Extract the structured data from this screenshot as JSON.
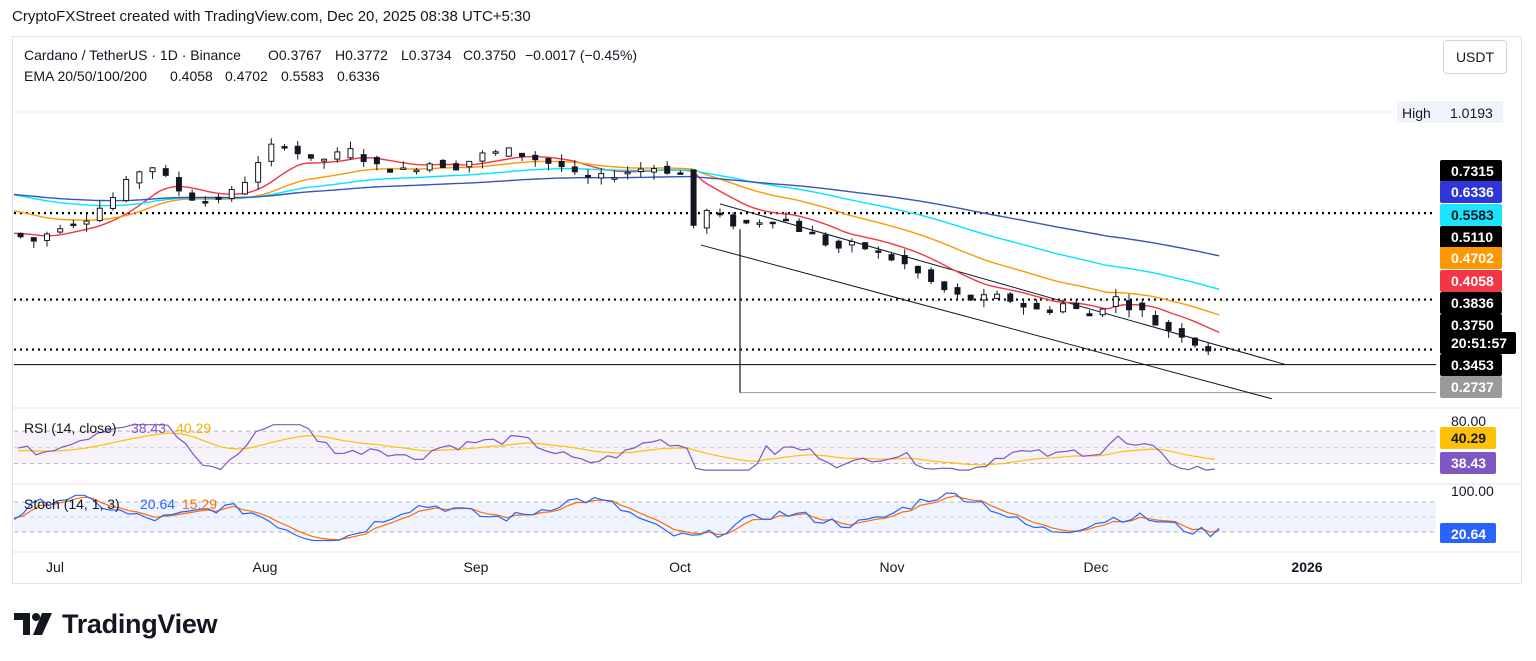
{
  "caption": "CryptoFXStreet created with TradingView.com, Dec 20, 2025 08:38 UTC+5:30",
  "header": {
    "symbol": "Cardano / TetherUS · 1D · Binance",
    "open": "O0.3767",
    "high": "H0.3772",
    "low": "L0.3734",
    "close": "C0.3750",
    "change": "−0.0017 (−0.45%)"
  },
  "ema": {
    "label": "EMA 20/50/100/200",
    "v20": "0.4058",
    "v50": "0.4702",
    "v100": "0.5583",
    "v200": "0.6336",
    "colors": {
      "ema20": "#f23645",
      "ema50": "#ff9800",
      "ema100": "#00e5ff",
      "ema200": "#3f51b5"
    }
  },
  "currency_button": "USDT",
  "high_marker": {
    "label": "High",
    "value": "1.0193"
  },
  "price_tags": [
    {
      "text": "0.7315",
      "bg": "#000000",
      "fg": "#ffffff"
    },
    {
      "text": "0.6336",
      "bg": "#2f35d8",
      "fg": "#ffffff"
    },
    {
      "text": "0.5583",
      "bg": "#1be4ff",
      "fg": "#131722"
    },
    {
      "text": "0.5110",
      "bg": "#000000",
      "fg": "#ffffff"
    },
    {
      "text": "0.4702",
      "bg": "#ff9800",
      "fg": "#ffffff"
    },
    {
      "text": "0.4058",
      "bg": "#f23645",
      "fg": "#ffffff"
    },
    {
      "text": "0.3836",
      "bg": "#000000",
      "fg": "#ffffff"
    },
    {
      "text": "0.3750",
      "bg": "#000000",
      "fg": "#ffffff"
    },
    {
      "text": "20:51:57",
      "bg": "#000000",
      "fg": "#ffffff"
    },
    {
      "text": "0.3453",
      "bg": "#000000",
      "fg": "#ffffff"
    },
    {
      "text": "0.2737",
      "bg": "#9a9a9a",
      "fg": "#ffffff"
    }
  ],
  "rsi": {
    "label": "RSI (14, close)",
    "value": "38.43",
    "ma_value": "40.29",
    "level_high": "80.00",
    "colors": {
      "rsi": "#7e57c2",
      "ma": "#ffc107"
    }
  },
  "stoch": {
    "label": "Stoch (14, 1, 3)",
    "k": "20.64",
    "d": "15.29",
    "level_high": "100.00",
    "colors": {
      "k": "#2962ff",
      "d": "#ff6d00"
    }
  },
  "time_axis": [
    "Jul",
    "Aug",
    "Sep",
    "Oct",
    "Nov",
    "Dec",
    "2026"
  ],
  "brand": "TradingView",
  "chart_data": {
    "type": "candlestick",
    "title": "Cardano / TetherUS · 1D · Binance",
    "x_range": [
      "2025-06-25",
      "2026-01-31"
    ],
    "y_range": [
      0.255,
      1.03
    ],
    "horizontal_levels": [
      0.7315,
      0.511,
      0.3836,
      0.3453,
      0.2737
    ],
    "current_price": 0.375,
    "period_high": 1.0193,
    "price_path": [
      [
        0,
        0.68
      ],
      [
        6,
        0.66
      ],
      [
        12,
        0.7
      ],
      [
        18,
        0.72
      ],
      [
        24,
        0.77
      ],
      [
        28,
        0.82
      ],
      [
        32,
        0.86
      ],
      [
        36,
        0.82
      ],
      [
        40,
        0.78
      ],
      [
        44,
        0.76
      ],
      [
        48,
        0.77
      ],
      [
        52,
        0.79
      ],
      [
        56,
        0.84
      ],
      [
        60,
        0.9
      ],
      [
        64,
        0.91
      ],
      [
        68,
        0.86
      ],
      [
        72,
        0.87
      ],
      [
        78,
        0.89
      ],
      [
        84,
        0.85
      ],
      [
        90,
        0.84
      ],
      [
        96,
        0.86
      ],
      [
        102,
        0.85
      ],
      [
        108,
        0.88
      ],
      [
        114,
        0.89
      ],
      [
        120,
        0.87
      ],
      [
        126,
        0.85
      ],
      [
        130,
        0.82
      ],
      [
        134,
        0.82
      ],
      [
        138,
        0.83
      ],
      [
        142,
        0.84
      ],
      [
        146,
        0.85
      ],
      [
        150,
        0.84
      ],
      [
        154,
        0.83
      ],
      [
        156,
        0.7
      ],
      [
        158,
        0.74
      ],
      [
        162,
        0.72
      ],
      [
        166,
        0.7
      ],
      [
        170,
        0.71
      ],
      [
        176,
        0.72
      ],
      [
        180,
        0.69
      ],
      [
        184,
        0.67
      ],
      [
        188,
        0.64
      ],
      [
        192,
        0.65
      ],
      [
        196,
        0.64
      ],
      [
        200,
        0.62
      ],
      [
        204,
        0.6
      ],
      [
        208,
        0.57
      ],
      [
        212,
        0.54
      ],
      [
        216,
        0.52
      ],
      [
        220,
        0.51
      ],
      [
        224,
        0.52
      ],
      [
        228,
        0.51
      ],
      [
        232,
        0.49
      ],
      [
        236,
        0.48
      ],
      [
        240,
        0.5
      ],
      [
        244,
        0.48
      ],
      [
        248,
        0.46
      ],
      [
        250,
        0.53
      ],
      [
        254,
        0.5
      ],
      [
        258,
        0.48
      ],
      [
        262,
        0.44
      ],
      [
        266,
        0.43
      ],
      [
        270,
        0.4
      ],
      [
        274,
        0.38
      ]
    ],
    "ema_series": [
      {
        "name": "EMA 20",
        "last": 0.4058
      },
      {
        "name": "EMA 50",
        "last": 0.4702
      },
      {
        "name": "EMA 100",
        "last": 0.5583
      },
      {
        "name": "EMA 200",
        "last": 0.6336
      }
    ],
    "indicators": {
      "rsi": {
        "last": 38.43,
        "ma_last": 40.29,
        "bands": [
          30,
          70
        ]
      },
      "stoch": {
        "k_last": 20.64,
        "d_last": 15.29,
        "bands": [
          20,
          80
        ]
      }
    }
  }
}
